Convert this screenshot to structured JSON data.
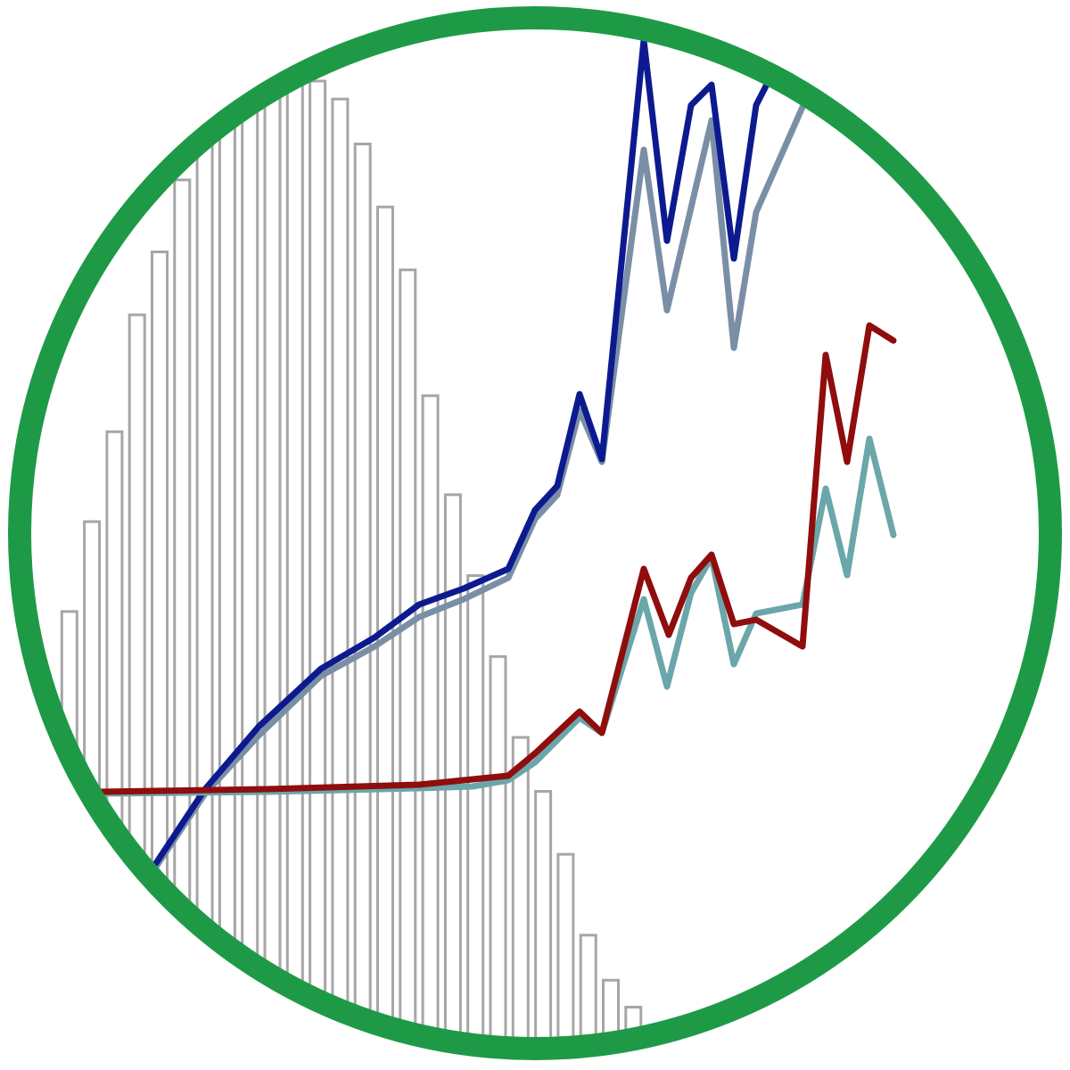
{
  "colors": {
    "background": "#ffffff",
    "ring": "#1e9a47",
    "bar_stroke": "#a6a6a6",
    "bar_fill": "#ffffff",
    "series_dark_blue": "#0d1a8f",
    "series_slate": "#7a8fa6",
    "series_dark_red": "#8f0d0d",
    "series_teal": "#6aa6aa"
  },
  "icon": {
    "name": "histogram-trend-lines-icon",
    "shape": "circle-badge"
  },
  "chart_data": {
    "type": "bar",
    "histogram": {
      "values": [
        0.39,
        0.5,
        0.6,
        0.7,
        0.83,
        0.9,
        0.98,
        1.02,
        1.05,
        1.08,
        1.1,
        1.1,
        1.09,
        1.07,
        1.02,
        0.95,
        0.88,
        0.74,
        0.63,
        0.54,
        0.45,
        0.36,
        0.3,
        0.23,
        0.14,
        0.09,
        0.06,
        0.03,
        0.02,
        0.01,
        0.005
      ],
      "max": 1.2
    },
    "series": [
      {
        "values": [
          [
            175,
            968
          ],
          [
            230,
            885
          ],
          [
            290,
            815
          ],
          [
            360,
            750
          ],
          [
            420,
            715
          ],
          [
            470,
            678
          ],
          [
            520,
            660
          ],
          [
            570,
            638
          ],
          [
            600,
            572
          ],
          [
            625,
            545
          ],
          [
            650,
            442
          ],
          [
            675,
            515
          ],
          [
            722,
            45
          ],
          [
            748,
            270
          ],
          [
            775,
            118
          ],
          [
            798,
            95
          ],
          [
            823,
            290
          ],
          [
            848,
            118
          ],
          [
            870,
            75
          ]
        ]
      },
      {
        "values": [
          [
            175,
            972
          ],
          [
            230,
            890
          ],
          [
            290,
            825
          ],
          [
            360,
            758
          ],
          [
            420,
            725
          ],
          [
            470,
            692
          ],
          [
            520,
            672
          ],
          [
            570,
            648
          ],
          [
            600,
            582
          ],
          [
            625,
            555
          ],
          [
            650,
            460
          ],
          [
            675,
            518
          ],
          [
            722,
            168
          ],
          [
            748,
            348
          ],
          [
            798,
            135
          ],
          [
            823,
            390
          ],
          [
            848,
            238
          ],
          [
            900,
            120
          ]
        ]
      },
      {
        "values": [
          [
            110,
            888
          ],
          [
            300,
            885
          ],
          [
            470,
            880
          ],
          [
            570,
            870
          ],
          [
            600,
            845
          ],
          [
            650,
            798
          ],
          [
            675,
            822
          ],
          [
            722,
            638
          ],
          [
            750,
            712
          ],
          [
            775,
            648
          ],
          [
            798,
            622
          ],
          [
            823,
            700
          ],
          [
            848,
            695
          ],
          [
            900,
            725
          ],
          [
            926,
            398
          ],
          [
            950,
            518
          ],
          [
            975,
            365
          ],
          [
            1002,
            382
          ]
        ]
      },
      {
        "values": [
          [
            110,
            890
          ],
          [
            300,
            888
          ],
          [
            470,
            884
          ],
          [
            530,
            882
          ],
          [
            570,
            875
          ],
          [
            600,
            855
          ],
          [
            650,
            805
          ],
          [
            675,
            822
          ],
          [
            722,
            672
          ],
          [
            748,
            770
          ],
          [
            775,
            665
          ],
          [
            798,
            625
          ],
          [
            823,
            745
          ],
          [
            848,
            688
          ],
          [
            900,
            678
          ],
          [
            926,
            548
          ],
          [
            950,
            645
          ],
          [
            975,
            492
          ],
          [
            1002,
            600
          ]
        ]
      }
    ]
  }
}
